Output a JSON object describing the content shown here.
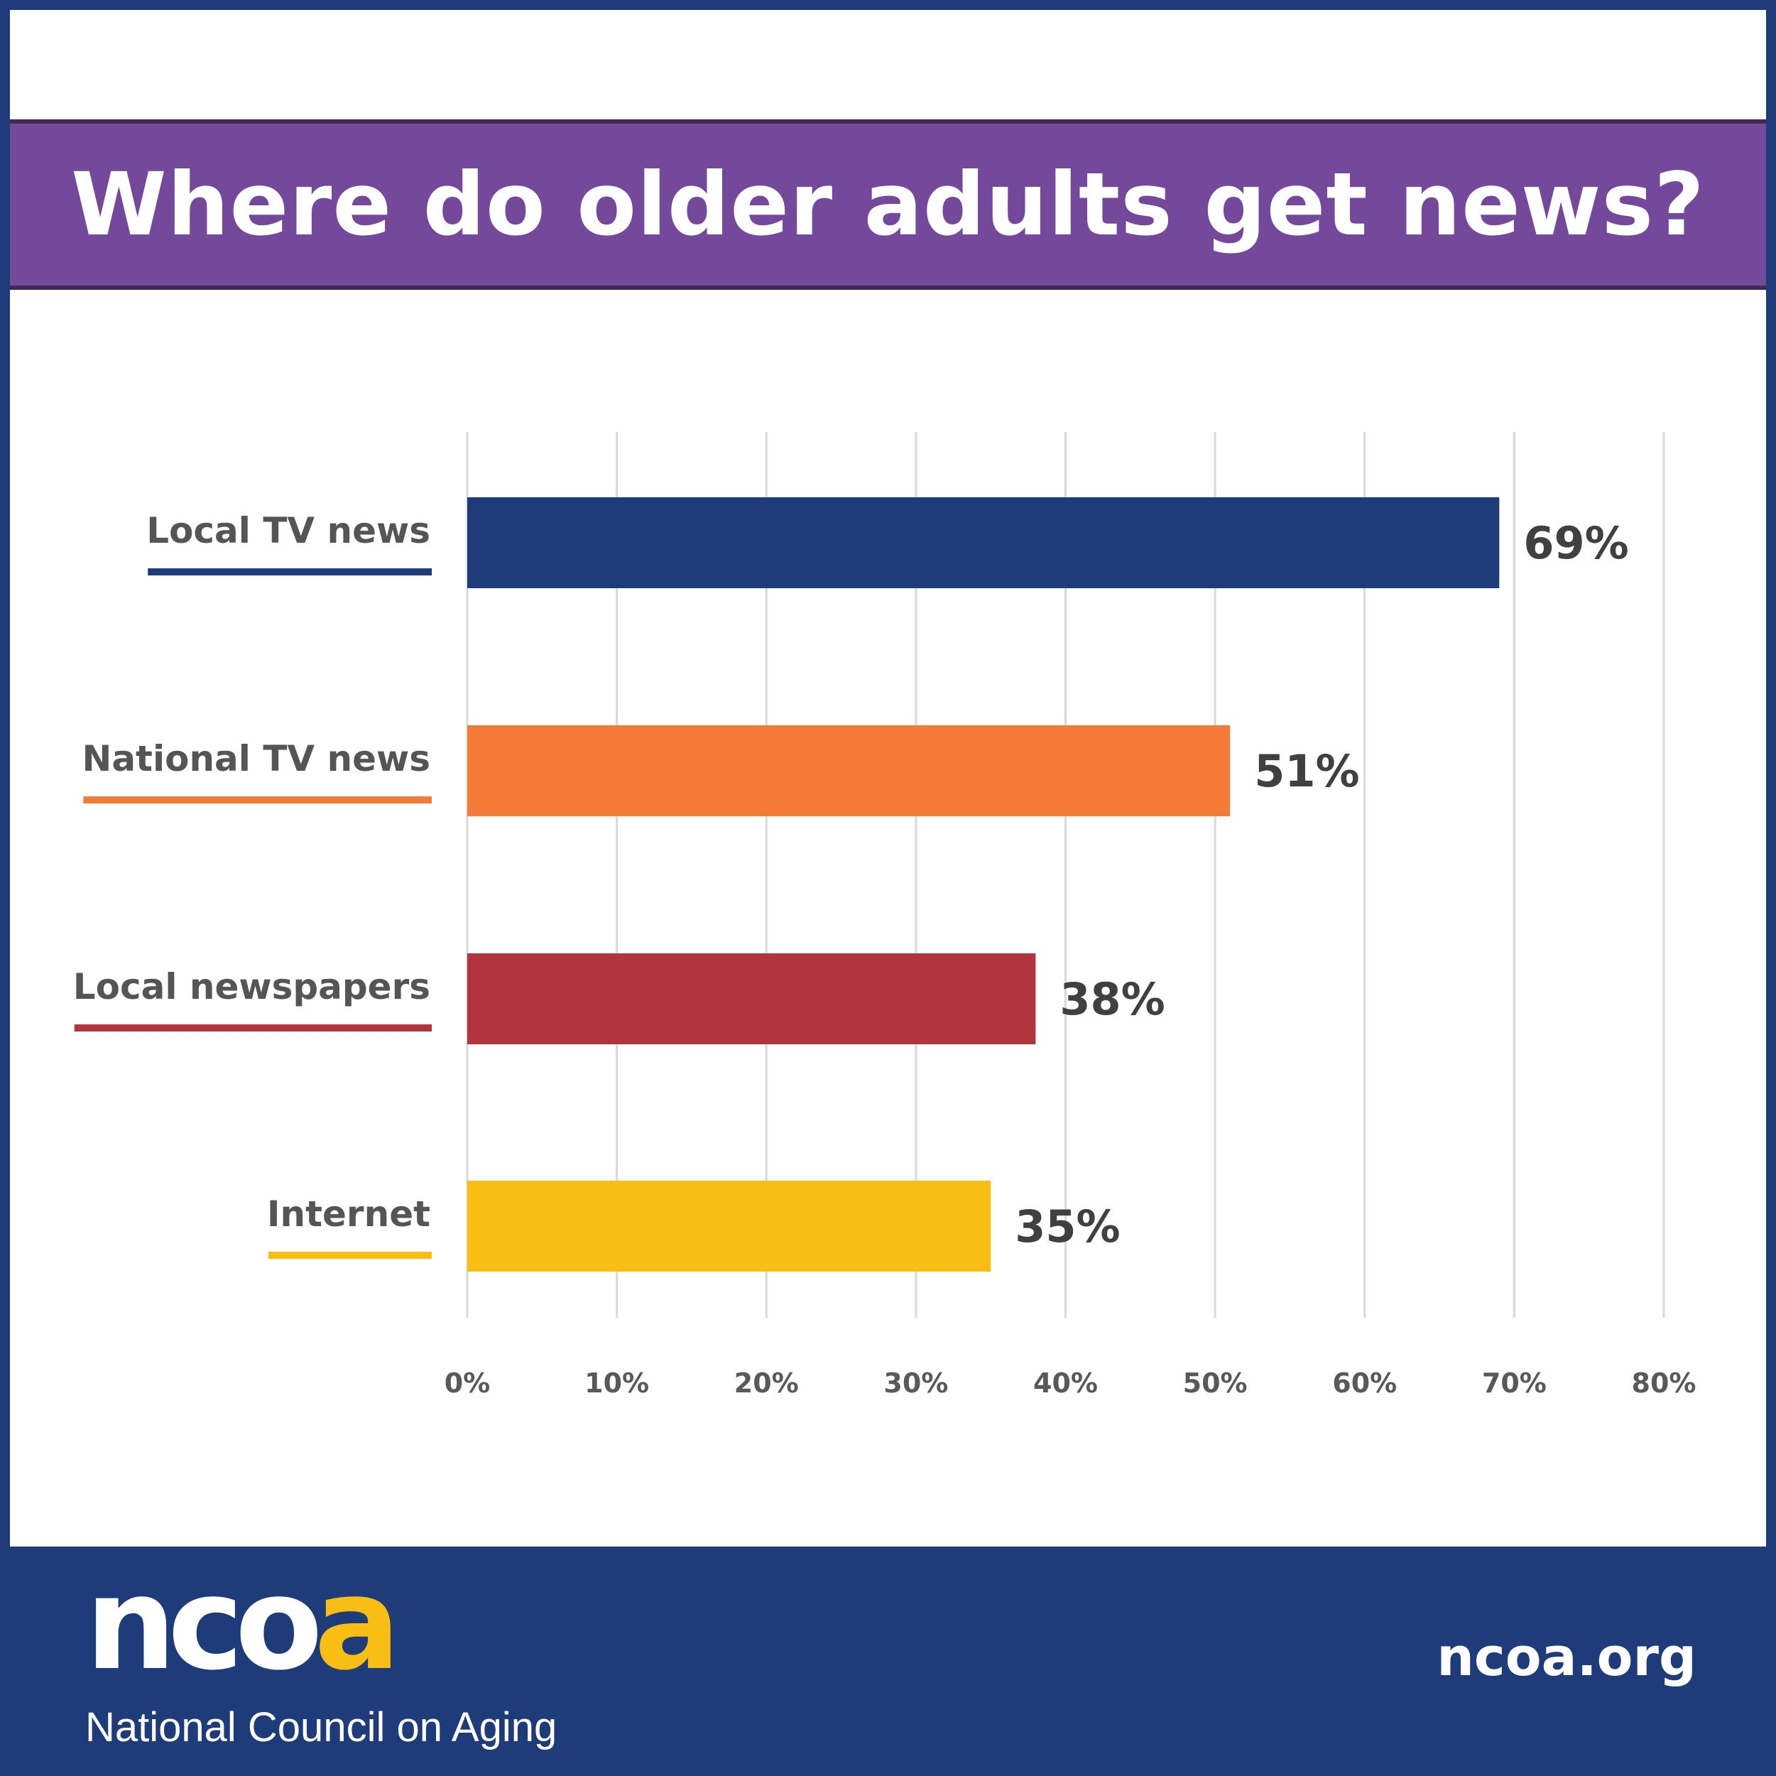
{
  "title": "Where do older adults get news?",
  "chart_data": {
    "type": "bar",
    "orientation": "horizontal",
    "categories": [
      "Local TV news",
      "National TV news",
      "Local newspapers",
      "Internet"
    ],
    "values": [
      69,
      51,
      38,
      35
    ],
    "value_labels": [
      "69%",
      "51%",
      "38%",
      "35%"
    ],
    "colors": [
      "#1f3c7a",
      "#f47a38",
      "#b2353d",
      "#f8be14"
    ],
    "xlim": [
      0,
      80
    ],
    "xticks": [
      0,
      10,
      20,
      30,
      40,
      50,
      60,
      70,
      80
    ],
    "xtick_labels": [
      "0%",
      "10%",
      "20%",
      "30%",
      "40%",
      "50%",
      "60%",
      "70%",
      "80%"
    ],
    "grid": true,
    "title": "Where do older adults get news?",
    "xlabel": "",
    "ylabel": ""
  },
  "footer": {
    "logo_letters": [
      "n",
      "c",
      "o",
      "a"
    ],
    "org_name": "National Council on Aging",
    "url": "ncoa.org"
  },
  "theme": {
    "title_band": "#74489b",
    "navy": "#1f3c7a",
    "gold": "#f8be14"
  }
}
